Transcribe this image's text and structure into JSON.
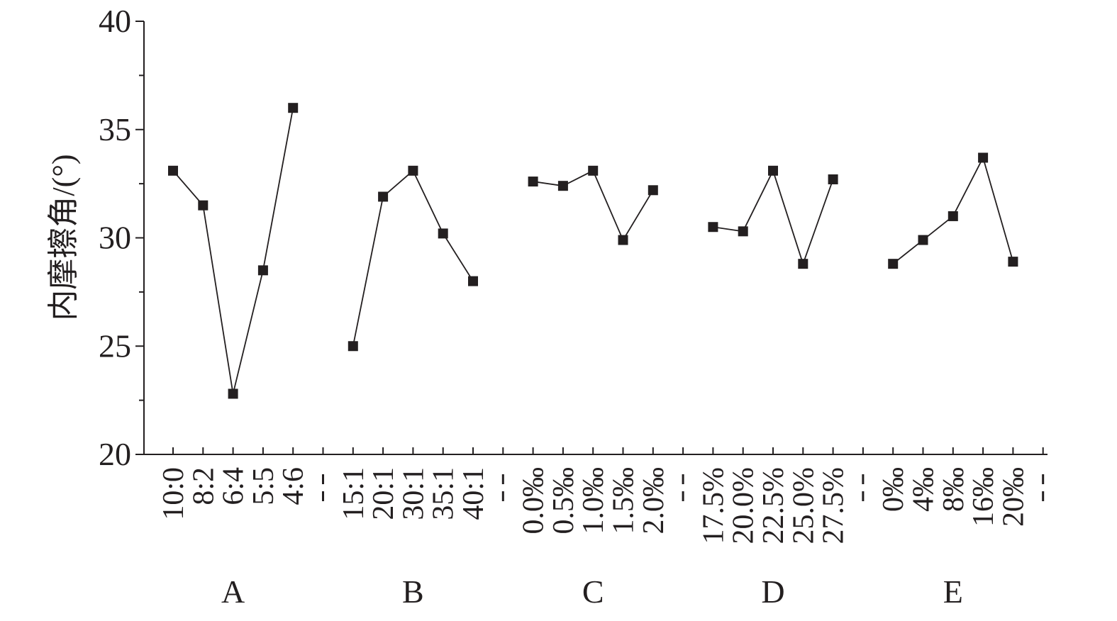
{
  "chart_data": {
    "type": "line",
    "title": "",
    "ylabel": "内摩擦角/(°)",
    "ylim": [
      20,
      40
    ],
    "yticks": [
      20,
      25,
      30,
      35,
      40
    ],
    "y_minor_step": 2.5,
    "grid": false,
    "marker": "square",
    "line_color": "#231f20",
    "groups": [
      {
        "name": "A",
        "categories": [
          "10:0",
          "8:2",
          "6:4",
          "5:5",
          "4:6"
        ],
        "values": [
          33.1,
          31.5,
          22.8,
          28.5,
          36.0
        ]
      },
      {
        "name": "B",
        "categories": [
          "15:1",
          "20:1",
          "30:1",
          "35:1",
          "40:1"
        ],
        "values": [
          25.0,
          31.9,
          33.1,
          30.2,
          28.0
        ]
      },
      {
        "name": "C",
        "categories": [
          "0.0‰",
          "0.5‰",
          "1.0‰",
          "1.5‰",
          "2.0‰"
        ],
        "values": [
          32.6,
          32.4,
          33.1,
          29.9,
          32.2
        ]
      },
      {
        "name": "D",
        "categories": [
          "17.5%",
          "20.0%",
          "22.5%",
          "25.0%",
          "27.5%"
        ],
        "values": [
          30.5,
          30.3,
          33.1,
          28.8,
          32.7
        ]
      },
      {
        "name": "E",
        "categories": [
          "0‰",
          "4‰",
          "8‰",
          "16‰",
          "20‰"
        ],
        "values": [
          28.8,
          29.9,
          31.0,
          33.7,
          28.9
        ]
      }
    ]
  }
}
